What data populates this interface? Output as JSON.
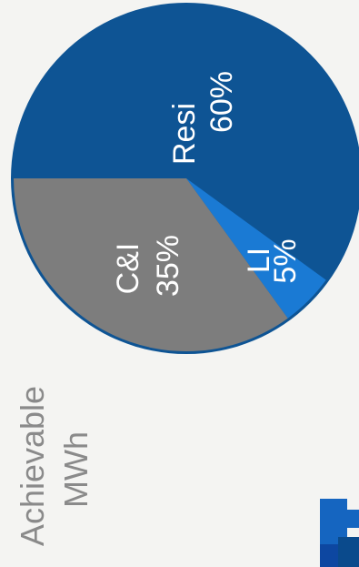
{
  "chart_data": {
    "type": "pie",
    "title": "Achievable MWh",
    "title_lines": [
      "Achievable",
      "MWh"
    ],
    "slices": [
      {
        "label": "Resi",
        "value": 60,
        "value_label": "60%",
        "color": "#0e5494"
      },
      {
        "label": "LI",
        "value": 5,
        "value_label": "5%",
        "color": "#1a7ad4"
      },
      {
        "label": "C&I",
        "value": 35,
        "value_label": "35%",
        "color": "#7d7d7d"
      }
    ],
    "rim_color": "#0e5494",
    "legend": "none"
  }
}
